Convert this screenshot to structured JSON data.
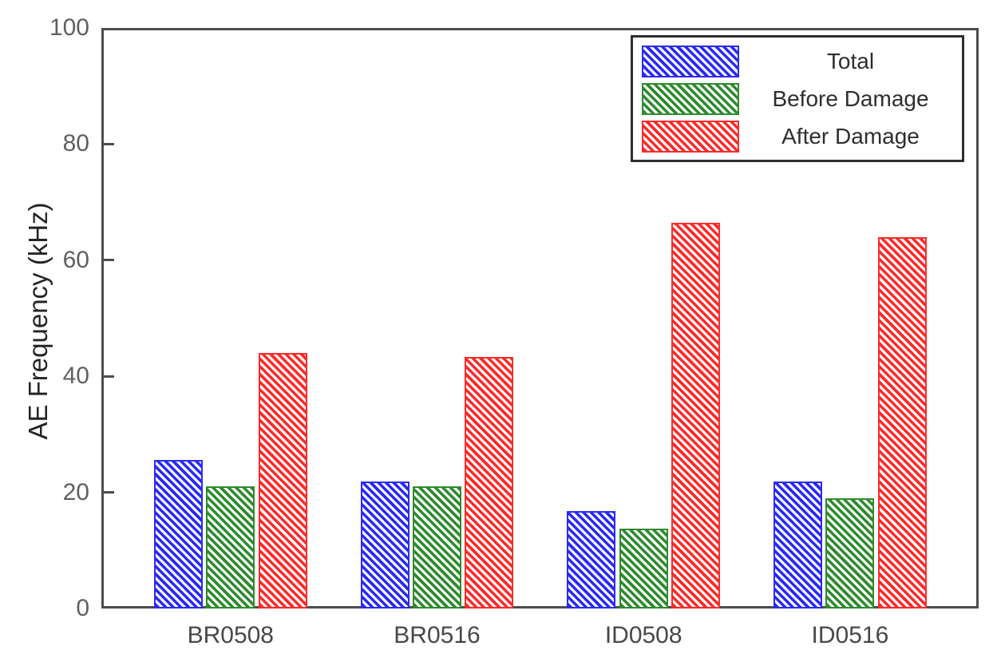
{
  "chart_data": {
    "type": "bar",
    "title": "",
    "xlabel": "",
    "ylabel": "AE Frequency (kHz)",
    "ylim": [
      0,
      100
    ],
    "yticks": [
      0,
      20,
      40,
      60,
      80,
      100
    ],
    "categories": [
      "BR0508",
      "BR0516",
      "ID0508",
      "ID0516"
    ],
    "series": [
      {
        "name": "Total",
        "color": "#2a2af5",
        "values": [
          25.6,
          21.9,
          16.8,
          21.9
        ]
      },
      {
        "name": "Before Damage",
        "color": "#2e8b2e",
        "values": [
          21.1,
          21.1,
          13.8,
          19.0
        ]
      },
      {
        "name": "After Damage",
        "color": "#fb2b2b",
        "values": [
          44.0,
          43.3,
          66.5,
          64.0
        ]
      }
    ],
    "hatch": "\\",
    "grid": false,
    "legend_position": "upper-right"
  }
}
